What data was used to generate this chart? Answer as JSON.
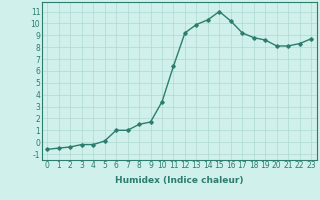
{
  "x": [
    0,
    1,
    2,
    3,
    4,
    5,
    6,
    7,
    8,
    9,
    10,
    11,
    12,
    13,
    14,
    15,
    16,
    17,
    18,
    19,
    20,
    21,
    22,
    23
  ],
  "y": [
    -0.6,
    -0.5,
    -0.4,
    -0.2,
    -0.2,
    0.1,
    1.0,
    1.0,
    1.5,
    1.7,
    3.4,
    6.4,
    9.2,
    9.9,
    10.3,
    11.0,
    10.2,
    9.2,
    8.8,
    8.6,
    8.1,
    8.1,
    8.3,
    8.7
  ],
  "line_color": "#2d7d6e",
  "marker": "D",
  "marker_size": 1.8,
  "bg_color": "#cff0eb",
  "grid_color": "#b0d8d2",
  "xlabel": "Humidex (Indice chaleur)",
  "ylim": [
    -1.5,
    11.8
  ],
  "xlim": [
    -0.5,
    23.5
  ],
  "yticks": [
    -1,
    0,
    1,
    2,
    3,
    4,
    5,
    6,
    7,
    8,
    9,
    10,
    11
  ],
  "xticks": [
    0,
    1,
    2,
    3,
    4,
    5,
    6,
    7,
    8,
    9,
    10,
    11,
    12,
    13,
    14,
    15,
    16,
    17,
    18,
    19,
    20,
    21,
    22,
    23
  ],
  "xlabel_fontsize": 6.5,
  "tick_fontsize": 5.5,
  "line_width": 1.0
}
